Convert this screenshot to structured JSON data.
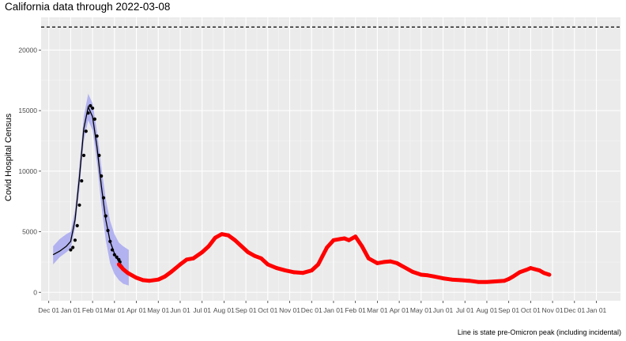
{
  "chart_data": {
    "type": "line",
    "title": "California data through 2022-03-08",
    "ylabel": "Covid Hospital Census",
    "xlabel": "",
    "caption": "Line is state pre-Omicron peak (including incidental)",
    "x_tick_labels": [
      "Dec 01",
      "Jan 01",
      "Feb 01",
      "Mar 01",
      "Apr 01",
      "May 01",
      "Jun 01",
      "Jul 01",
      "Aug 01",
      "Sep 01",
      "Oct 01",
      "Nov 01",
      "Dec 01",
      "Jan 01",
      "Feb 01",
      "Mar 01",
      "Apr 01",
      "May 01",
      "Jun 01",
      "Jul 01",
      "Aug 01",
      "Sep 01",
      "Oct 01",
      "Nov 01",
      "Dec 01",
      "Jan 01"
    ],
    "x_tick_months": [
      0,
      1,
      2,
      3,
      4,
      5,
      6,
      7,
      8,
      9,
      10,
      11,
      12,
      13,
      14,
      15,
      16,
      17,
      18,
      19,
      20,
      21,
      22,
      23,
      24,
      25
    ],
    "y_ticks": [
      0,
      5000,
      10000,
      15000,
      20000
    ],
    "ylim": [
      -700,
      22700
    ],
    "xlim_months": [
      -0.35,
      26.1
    ],
    "grid": true,
    "reference_line": {
      "label": "pre-Omicron peak",
      "value": 21900,
      "style": "dashed"
    },
    "series": [
      {
        "kind": "observed",
        "color": "#000000",
        "x_months": [
          1.0,
          1.1,
          1.2,
          1.3,
          1.4,
          1.5,
          1.6,
          1.7,
          1.8,
          1.9,
          2.0,
          2.1,
          2.2,
          2.3,
          2.4,
          2.5,
          2.6,
          2.7,
          2.8,
          2.9,
          3.0,
          3.1,
          3.2,
          3.25
        ],
        "y": [
          3500,
          3700,
          4300,
          5500,
          7200,
          9200,
          11300,
          13300,
          14800,
          15400,
          15200,
          14300,
          12900,
          11300,
          9600,
          7800,
          6300,
          5100,
          4200,
          3500,
          3100,
          2900,
          2700,
          2500
        ]
      },
      {
        "kind": "model fit",
        "color": "#000000",
        "x_months": [
          0.2,
          0.5,
          0.8,
          1.0,
          1.2,
          1.4,
          1.6,
          1.8,
          2.0,
          2.2,
          2.4,
          2.6,
          2.8,
          3.0,
          3.2,
          3.4
        ],
        "y": [
          3100,
          3400,
          3800,
          4200,
          6000,
          9500,
          13500,
          15300,
          14500,
          12000,
          8800,
          6000,
          4200,
          3200,
          2500,
          2100
        ]
      },
      {
        "kind": "confidence band",
        "color": "#9f9ff2",
        "x_months": [
          0.2,
          0.5,
          0.8,
          1.0,
          1.2,
          1.4,
          1.6,
          1.8,
          2.0,
          2.2,
          2.4,
          2.6,
          2.8,
          3.0,
          3.2,
          3.4,
          3.65
        ],
        "y_low": [
          2300,
          2900,
          3300,
          3600,
          5300,
          8500,
          12500,
          14200,
          13400,
          10700,
          7200,
          4300,
          2400,
          1500,
          1000,
          700,
          550
        ],
        "y_high": [
          3800,
          4400,
          4800,
          5000,
          6800,
          10500,
          14500,
          16400,
          15600,
          13300,
          10400,
          7700,
          5900,
          4800,
          4100,
          3800,
          3500
        ]
      },
      {
        "kind": "projection",
        "color": "#ff0000",
        "x_months": [
          3.2,
          3.4,
          3.6,
          3.8,
          4.0,
          4.3,
          4.6,
          5.0,
          5.3,
          5.6,
          6.0,
          6.3,
          6.6,
          7.0,
          7.3,
          7.6,
          7.9,
          8.2,
          8.5,
          8.8,
          9.1,
          9.4,
          9.7,
          10.0,
          10.4,
          10.8,
          11.2,
          11.6,
          12.0,
          12.3,
          12.5,
          12.7,
          13.0,
          13.3,
          13.5,
          13.7,
          14.0,
          14.3,
          14.6,
          15.0,
          15.3,
          15.6,
          15.9,
          16.2,
          16.6,
          17.0,
          17.3,
          17.6,
          18.0,
          18.4,
          18.8,
          19.2,
          19.6,
          20.0,
          20.4,
          20.8,
          21.0,
          21.2,
          21.5,
          21.8,
          22.0,
          22.2,
          22.4,
          22.6,
          22.85
        ],
        "y": [
          2300,
          1900,
          1600,
          1400,
          1200,
          1000,
          950,
          1050,
          1300,
          1700,
          2300,
          2700,
          2800,
          3300,
          3800,
          4500,
          4800,
          4700,
          4300,
          3800,
          3300,
          3000,
          2800,
          2300,
          2000,
          1800,
          1650,
          1600,
          1800,
          2300,
          3000,
          3700,
          4300,
          4400,
          4450,
          4300,
          4600,
          3800,
          2800,
          2400,
          2500,
          2550,
          2400,
          2100,
          1700,
          1450,
          1400,
          1300,
          1150,
          1050,
          1000,
          950,
          850,
          850,
          900,
          950,
          1100,
          1300,
          1650,
          1850,
          2000,
          1900,
          1800,
          1600,
          1450
        ]
      }
    ]
  }
}
